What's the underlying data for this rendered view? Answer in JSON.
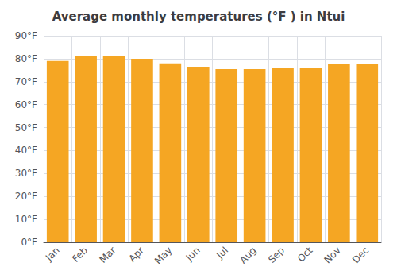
{
  "chart_data": {
    "type": "bar",
    "title": "Average monthly temperatures (°F ) in Ntui",
    "categories": [
      "Jan",
      "Feb",
      "Mar",
      "Apr",
      "May",
      "Jun",
      "Jul",
      "Aug",
      "Sep",
      "Oct",
      "Nov",
      "Dec"
    ],
    "values": [
      79,
      81,
      81,
      80,
      78,
      76.5,
      75.5,
      75.5,
      76,
      76,
      77.5,
      77.5
    ],
    "color": "#F5A623",
    "ylim": [
      0,
      90
    ],
    "yticks": [
      {
        "value": 0,
        "label": "0°F"
      },
      {
        "value": 10,
        "label": "10°F"
      },
      {
        "value": 20,
        "label": "20°F"
      },
      {
        "value": 30,
        "label": "30°F"
      },
      {
        "value": 40,
        "label": "40°F"
      },
      {
        "value": 50,
        "label": "50°F"
      },
      {
        "value": 60,
        "label": "60°F"
      },
      {
        "value": 70,
        "label": "70°F"
      },
      {
        "value": 80,
        "label": "80°F"
      },
      {
        "value": 90,
        "label": "90°F"
      }
    ],
    "grid": true
  }
}
